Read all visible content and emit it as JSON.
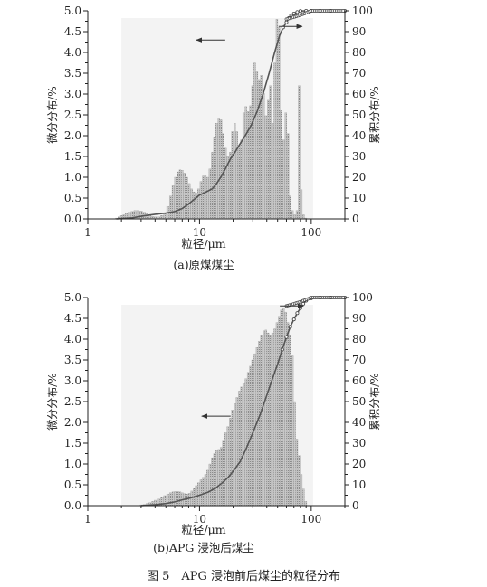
{
  "figure_caption": "图 5　APG 浸泡前后煤尘的粒径分布",
  "chart_data": [
    {
      "type": "bar",
      "caption": "(a)原煤煤尘",
      "xlabel": "粒径/μm",
      "ylabel_left": "微分分布/%",
      "ylabel_right": "累积分布/%",
      "x_scale": "log",
      "xlim": [
        1,
        200
      ],
      "ylim_left": [
        0,
        5.0
      ],
      "ylim_right": [
        0,
        100
      ],
      "x_ticks": [
        "1",
        "10",
        "100"
      ],
      "y_ticks_left": [
        "0.0",
        "0.5",
        "1.0",
        "1.5",
        "2.0",
        "2.5",
        "3.0",
        "3.5",
        "4.0",
        "4.5",
        "5.0"
      ],
      "y_ticks_right": [
        "0",
        "10",
        "20",
        "30",
        "40",
        "50",
        "60",
        "70",
        "80",
        "90",
        "100"
      ],
      "differential": {
        "x": [
          1.8,
          1.9,
          2.0,
          2.1,
          2.2,
          2.35,
          2.5,
          2.65,
          2.8,
          3.0,
          3.2,
          3.4,
          3.6,
          3.8,
          4.0,
          4.3,
          4.6,
          4.9,
          5.2,
          5.5,
          5.8,
          6.1,
          6.4,
          6.7,
          7.0,
          7.35,
          7.7,
          8.1,
          8.5,
          8.9,
          9.3,
          9.8,
          10.3,
          10.8,
          11.3,
          11.8,
          12.4,
          13.0,
          13.6,
          14.2,
          14.9,
          15.6,
          16.3,
          17.1,
          17.9,
          18.8,
          19.7,
          20.6,
          21.6,
          22.6,
          23.7,
          24.8,
          26.0,
          27.2,
          28.5,
          29.8,
          31.2,
          32.7,
          34.2,
          35.8,
          37.5,
          39.3,
          41.1,
          43.0,
          45.0,
          47.1,
          49.3,
          51.6,
          54.0,
          56.5,
          59.2,
          62.0,
          64.9,
          67.9,
          71.1,
          74.4,
          77.9,
          81.6,
          85.4,
          89.4
        ],
        "y": [
          0.02,
          0.05,
          0.08,
          0.1,
          0.13,
          0.16,
          0.18,
          0.2,
          0.2,
          0.19,
          0.16,
          0.12,
          0.08,
          0.06,
          0.05,
          0.05,
          0.08,
          0.15,
          0.3,
          0.55,
          0.8,
          1.0,
          1.13,
          1.18,
          1.17,
          1.1,
          1.0,
          0.85,
          0.72,
          0.65,
          0.62,
          0.72,
          0.9,
          1.03,
          1.05,
          1.0,
          1.2,
          1.6,
          1.95,
          2.3,
          2.42,
          2.38,
          2.05,
          1.7,
          1.5,
          1.6,
          2.1,
          2.3,
          2.1,
          1.75,
          1.9,
          2.55,
          2.7,
          2.58,
          2.72,
          3.2,
          3.75,
          3.55,
          3.35,
          3.45,
          3.02,
          2.48,
          2.85,
          3.2,
          2.3,
          3.75,
          4.8,
          4.6,
          2.6,
          1.9,
          2.55,
          2.05,
          0.55,
          0.2,
          0.1,
          0.2,
          3.2,
          0.7,
          0.1,
          0.02
        ]
      },
      "cumulative": {
        "x": [
          1.8,
          2.5,
          3.2,
          4.0,
          5.0,
          6.0,
          7.0,
          8.0,
          9.0,
          10.0,
          11.0,
          12.0,
          13.0,
          14.0,
          15.5,
          17.0,
          19.0,
          21.0,
          23.0,
          26.0,
          29.0,
          33.0,
          37.0,
          42.0,
          47.0,
          52.0,
          56.0,
          60.0,
          63.0,
          66.0,
          70.0,
          75.0,
          80.0,
          90.0,
          100.0,
          120.0,
          150.0,
          200.0
        ],
        "y": [
          0,
          0.5,
          1.5,
          2.2,
          2.8,
          3.5,
          5.0,
          7.2,
          9.5,
          11.5,
          12.5,
          13.5,
          14.5,
          16.5,
          20.0,
          24.0,
          29.0,
          32.5,
          36.0,
          40.5,
          45.0,
          52.0,
          60.0,
          70.0,
          80.0,
          88.0,
          92.0,
          94.5,
          96.5,
          97.8,
          98.7,
          99.4,
          99.9,
          100,
          100,
          100,
          100,
          100
        ]
      },
      "annotations": [
        {
          "arrow": "left",
          "points_to": "微分分布",
          "x": 17,
          "y_left": 4.3
        },
        {
          "arrow": "right",
          "points_to": "累积分布",
          "x": 83,
          "y_right": 92.5
        }
      ]
    },
    {
      "type": "bar",
      "caption": "(b)APG 浸泡后煤尘",
      "xlabel": "粒径/μm",
      "ylabel_left": "微分分布/%",
      "ylabel_right": "累积分布/%",
      "x_scale": "log",
      "xlim": [
        1,
        200
      ],
      "ylim_left": [
        0,
        5.0
      ],
      "ylim_right": [
        0,
        100
      ],
      "x_ticks": [
        "1",
        "10",
        "100"
      ],
      "y_ticks_left": [
        "0.0",
        "0.5",
        "1.0",
        "1.5",
        "2.0",
        "2.5",
        "3.0",
        "3.5",
        "4.0",
        "4.5",
        "5.0"
      ],
      "y_ticks_right": [
        "0",
        "10",
        "20",
        "30",
        "40",
        "50",
        "60",
        "70",
        "80",
        "90",
        "100"
      ],
      "differential": {
        "x": [
          3.0,
          3.2,
          3.4,
          3.6,
          3.8,
          4.0,
          4.3,
          4.6,
          4.9,
          5.2,
          5.5,
          5.8,
          6.1,
          6.4,
          6.7,
          7.0,
          7.35,
          7.7,
          8.1,
          8.5,
          8.9,
          9.3,
          9.8,
          10.3,
          10.8,
          11.3,
          11.8,
          12.4,
          13.0,
          13.6,
          14.2,
          14.9,
          15.6,
          16.3,
          17.1,
          17.9,
          18.8,
          19.7,
          20.6,
          21.6,
          22.6,
          23.7,
          24.8,
          26.0,
          27.2,
          28.5,
          29.8,
          31.2,
          32.7,
          34.2,
          35.8,
          37.5,
          39.3,
          41.1,
          43.0,
          45.0,
          47.1,
          49.3,
          51.6,
          54.0,
          56.5,
          59.2,
          62.0,
          64.9,
          67.9,
          71.1,
          74.4,
          77.9,
          81.6,
          85.4,
          89.4
        ],
        "y": [
          0.02,
          0.03,
          0.05,
          0.07,
          0.1,
          0.13,
          0.16,
          0.2,
          0.24,
          0.28,
          0.31,
          0.33,
          0.34,
          0.34,
          0.33,
          0.31,
          0.29,
          0.28,
          0.3,
          0.35,
          0.42,
          0.48,
          0.55,
          0.62,
          0.68,
          0.75,
          0.85,
          1.0,
          1.15,
          1.25,
          1.32,
          1.35,
          1.4,
          1.55,
          1.75,
          1.9,
          2.1,
          2.3,
          2.45,
          2.6,
          2.75,
          2.85,
          2.95,
          3.05,
          3.2,
          3.35,
          3.5,
          3.65,
          3.8,
          3.95,
          4.1,
          4.2,
          4.22,
          4.15,
          4.1,
          4.15,
          4.25,
          4.4,
          4.55,
          4.7,
          4.75,
          4.65,
          4.4,
          4.1,
          3.6,
          2.5,
          1.6,
          1.2,
          0.75,
          0.4,
          0.1
        ]
      },
      "cumulative": {
        "x": [
          3.0,
          4.0,
          5.0,
          6.0,
          7.0,
          8.0,
          9.0,
          10.0,
          12.0,
          14.0,
          16.0,
          18.0,
          20.0,
          23.0,
          26.0,
          30.0,
          35.0,
          40.0,
          45.0,
          50.0,
          55.0,
          60.0,
          65.0,
          70.0,
          75.0,
          80.0,
          85.0,
          90.0,
          100.0,
          120.0,
          150.0,
          200.0
        ],
        "y": [
          0,
          0.5,
          1.0,
          1.8,
          2.8,
          3.5,
          4.2,
          5.0,
          6.5,
          8.5,
          11.0,
          13.5,
          16.5,
          21.0,
          27.0,
          35.0,
          44.0,
          53.0,
          61.0,
          68.0,
          75.0,
          81.0,
          86.0,
          89.5,
          92.5,
          95.0,
          97.0,
          98.5,
          99.6,
          100,
          100,
          100
        ]
      },
      "annotations": [
        {
          "arrow": "left",
          "points_to": "微分分布",
          "x": 19,
          "y_left": 2.15
        },
        {
          "arrow": "right",
          "points_to": "累积分布",
          "x": 85,
          "y_right": 96.0
        }
      ]
    }
  ]
}
